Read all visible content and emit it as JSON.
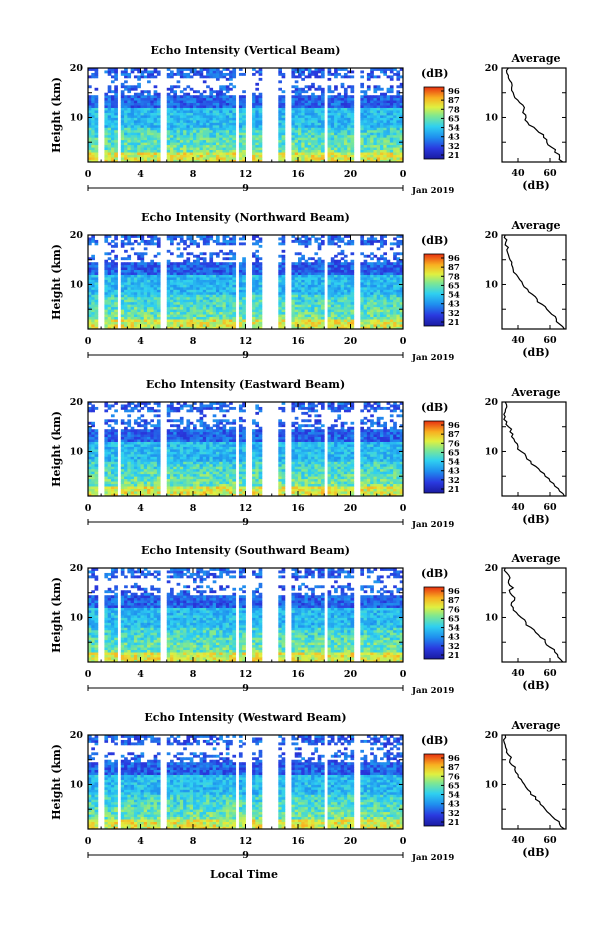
{
  "figure": {
    "xlabel": "Local Time",
    "date_label": "Jan 2019",
    "day_label": "9",
    "time_ticks": [
      "0",
      "4",
      "8",
      "12",
      "16",
      "20",
      "0"
    ],
    "height_label": "Height (km)",
    "height_ticks": [
      "10",
      "20"
    ],
    "avg_title": "Average",
    "avg_xlabel": "(dB)",
    "avg_xticks": [
      "40",
      "60"
    ],
    "cbar_units": "(dB)"
  },
  "chart_data": [
    {
      "type": "heatmap",
      "title": "Echo Intensity (Vertical Beam)",
      "ylabel": "Height (km)",
      "ylim": [
        1,
        20
      ],
      "xlim": [
        0,
        24
      ],
      "colorbar": {
        "label": "(dB)",
        "ticks": [
          "96",
          "87",
          "78",
          "65",
          "54",
          "43",
          "32",
          "21"
        ],
        "range": [
          21,
          96
        ]
      },
      "gaps_hours": [
        [
          0.8,
          1.2
        ],
        [
          2.2,
          2.6
        ],
        [
          5.6,
          6.0
        ],
        [
          11.2,
          11.5
        ],
        [
          12.1,
          12.4
        ],
        [
          13.3,
          14.6
        ],
        [
          15.0,
          15.4
        ],
        [
          17.9,
          18.3
        ],
        [
          20.3,
          20.8
        ]
      ],
      "average_profile": {
        "title": "Average",
        "xlabel": "(dB)",
        "xlim": [
          30,
          70
        ],
        "ylim": [
          1,
          20
        ],
        "height_km": [
          1,
          2,
          3,
          4,
          5,
          6,
          7,
          8,
          9,
          10,
          11,
          12,
          13,
          14,
          15,
          16,
          17,
          18,
          19,
          20
        ],
        "db": [
          68,
          66,
          63,
          61,
          58,
          56,
          53,
          50,
          46,
          45,
          43,
          44,
          41,
          38,
          37,
          36,
          36,
          34,
          33,
          34
        ]
      }
    },
    {
      "type": "heatmap",
      "title": "Echo Intensity (Northward Beam)",
      "ylabel": "Height (km)",
      "ylim": [
        1,
        20
      ],
      "xlim": [
        0,
        24
      ],
      "colorbar": {
        "label": "(dB)",
        "ticks": [
          "96",
          "87",
          "78",
          "65",
          "54",
          "43",
          "32",
          "21"
        ],
        "range": [
          21,
          96
        ]
      },
      "gaps_hours": [
        [
          0.8,
          1.2
        ],
        [
          2.2,
          2.6
        ],
        [
          5.6,
          6.0
        ],
        [
          11.2,
          11.5
        ],
        [
          12.1,
          12.4
        ],
        [
          13.3,
          14.6
        ],
        [
          15.0,
          15.4
        ],
        [
          17.9,
          18.3
        ],
        [
          20.3,
          20.8
        ]
      ],
      "average_profile": {
        "title": "Average",
        "xlabel": "(dB)",
        "xlim": [
          30,
          70
        ],
        "ylim": [
          1,
          20
        ],
        "height_km": [
          1,
          2,
          3,
          4,
          5,
          6,
          7,
          8,
          9,
          10,
          11,
          12,
          13,
          14,
          15,
          16,
          17,
          18,
          19,
          20
        ],
        "db": [
          69,
          66,
          64,
          61,
          58,
          55,
          52,
          49,
          46,
          43,
          41,
          39,
          37,
          36,
          35,
          34,
          33,
          32,
          33,
          32
        ]
      }
    },
    {
      "type": "heatmap",
      "title": "Echo Intensity (Eastward Beam)",
      "ylabel": "Height (km)",
      "ylim": [
        1,
        20
      ],
      "xlim": [
        0,
        24
      ],
      "colorbar": {
        "label": "(dB)",
        "ticks": [
          "96",
          "87",
          "76",
          "65",
          "54",
          "43",
          "32",
          "21"
        ],
        "range": [
          21,
          96
        ]
      },
      "gaps_hours": [
        [
          0.8,
          1.2
        ],
        [
          2.2,
          2.6
        ],
        [
          5.6,
          6.0
        ],
        [
          11.2,
          11.5
        ],
        [
          12.1,
          12.4
        ],
        [
          13.3,
          14.6
        ],
        [
          15.0,
          15.4
        ],
        [
          17.9,
          18.3
        ],
        [
          20.3,
          20.8
        ]
      ],
      "average_profile": {
        "title": "Average",
        "xlabel": "(dB)",
        "xlim": [
          30,
          70
        ],
        "ylim": [
          1,
          20
        ],
        "height_km": [
          1,
          2,
          3,
          4,
          5,
          6,
          7,
          8,
          9,
          10,
          11,
          12,
          13,
          14,
          15,
          16,
          17,
          18,
          19,
          20
        ],
        "db": [
          69,
          66,
          63,
          60,
          57,
          54,
          51,
          48,
          45,
          42,
          40,
          38,
          36,
          35,
          34,
          33,
          32,
          32,
          33,
          32
        ]
      }
    },
    {
      "type": "heatmap",
      "title": "Echo Intensity (Southward Beam)",
      "ylabel": "Height (km)",
      "ylim": [
        1,
        20
      ],
      "xlim": [
        0,
        24
      ],
      "colorbar": {
        "label": "(dB)",
        "ticks": [
          "96",
          "87",
          "76",
          "65",
          "54",
          "43",
          "32",
          "21"
        ],
        "range": [
          21,
          96
        ]
      },
      "gaps_hours": [
        [
          0.8,
          1.2
        ],
        [
          2.2,
          2.6
        ],
        [
          5.6,
          6.0
        ],
        [
          11.2,
          11.5
        ],
        [
          12.1,
          12.4
        ],
        [
          13.3,
          14.6
        ],
        [
          15.0,
          15.4
        ],
        [
          17.9,
          18.3
        ],
        [
          20.3,
          20.8
        ]
      ],
      "average_profile": {
        "title": "Average",
        "xlabel": "(dB)",
        "xlim": [
          30,
          70
        ],
        "ylim": [
          1,
          20
        ],
        "height_km": [
          1,
          2,
          3,
          4,
          5,
          6,
          7,
          8,
          9,
          10,
          11,
          12,
          13,
          14,
          15,
          16,
          17,
          18,
          19,
          20
        ],
        "db": [
          68,
          65,
          63,
          60,
          57,
          54,
          51,
          48,
          45,
          42,
          39,
          37,
          36,
          38,
          35,
          37,
          34,
          35,
          33,
          32
        ]
      }
    },
    {
      "type": "heatmap",
      "title": "Echo Intensity (Westward Beam)",
      "ylabel": "Height (km)",
      "ylim": [
        1,
        20
      ],
      "xlim": [
        0,
        24
      ],
      "colorbar": {
        "label": "(dB)",
        "ticks": [
          "96",
          "87",
          "76",
          "65",
          "54",
          "43",
          "32",
          "21"
        ],
        "range": [
          21,
          96
        ]
      },
      "gaps_hours": [
        [
          0.8,
          1.2
        ],
        [
          2.2,
          2.6
        ],
        [
          5.6,
          6.0
        ],
        [
          11.2,
          11.5
        ],
        [
          12.1,
          12.4
        ],
        [
          13.3,
          14.6
        ],
        [
          15.0,
          15.4
        ],
        [
          17.9,
          18.3
        ],
        [
          20.3,
          20.8
        ]
      ],
      "average_profile": {
        "title": "Average",
        "xlabel": "(dB)",
        "xlim": [
          30,
          70
        ],
        "ylim": [
          1,
          20
        ],
        "height_km": [
          1,
          2,
          3,
          4,
          5,
          6,
          7,
          8,
          9,
          10,
          11,
          12,
          13,
          14,
          15,
          16,
          17,
          18,
          19,
          20
        ],
        "db": [
          69,
          66,
          63,
          60,
          57,
          54,
          51,
          48,
          46,
          44,
          42,
          40,
          38,
          36,
          35,
          34,
          33,
          32,
          31,
          32
        ]
      }
    }
  ]
}
